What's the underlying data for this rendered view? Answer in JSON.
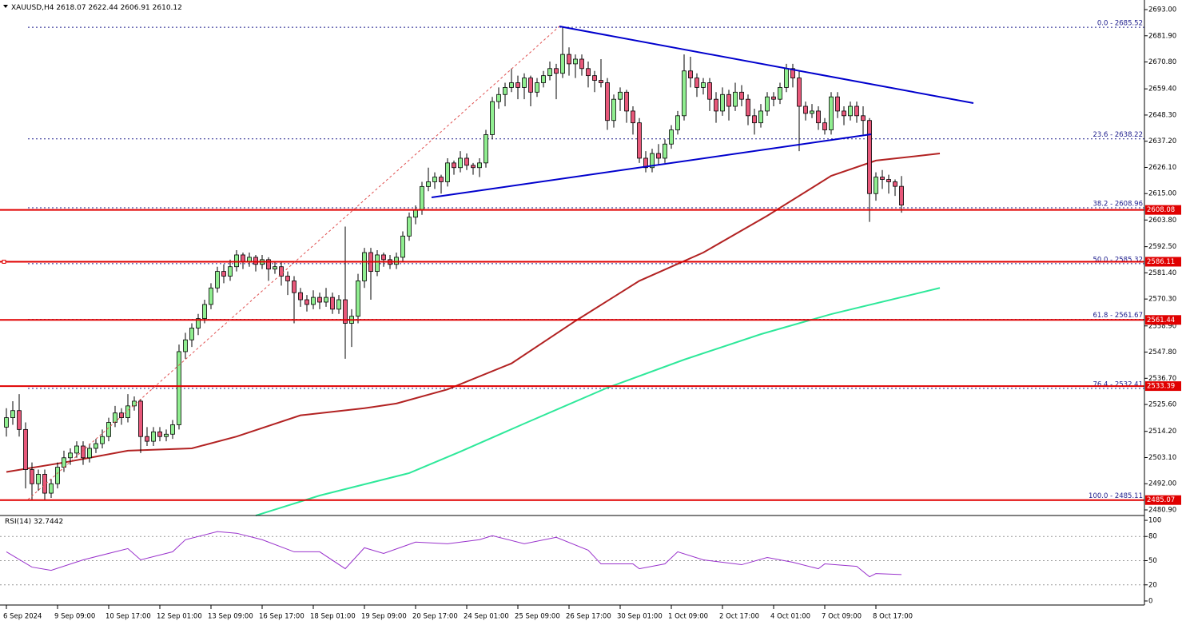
{
  "chart_data": {
    "type": "candlestick",
    "title": "XAUUSD,H4",
    "bull_color": "#90ee90",
    "bear_color": "#e8587a",
    "ylim": [
      2478.53,
      2697.07
    ],
    "yticks": [
      {
        "value": 2693.0,
        "label": "2693.00"
      },
      {
        "value": 2681.9,
        "label": "2681.90"
      },
      {
        "value": 2670.8,
        "label": "2670.80"
      },
      {
        "value": 2659.4,
        "label": "2659.40"
      },
      {
        "value": 2648.3,
        "label": "2648.30"
      },
      {
        "value": 2637.2,
        "label": "2637.20"
      },
      {
        "value": 2626.1,
        "label": "2626.10"
      },
      {
        "value": 2615.0,
        "label": "2615.00"
      },
      {
        "value": 2603.8,
        "label": "2603.80"
      },
      {
        "value": 2592.5,
        "label": "2592.50"
      },
      {
        "value": 2581.4,
        "label": "2581.40"
      },
      {
        "value": 2570.3,
        "label": "2570.30"
      },
      {
        "value": 2558.9,
        "label": "2558.90"
      },
      {
        "value": 2547.8,
        "label": "2547.80"
      },
      {
        "value": 2536.7,
        "label": "2536.70"
      },
      {
        "value": 2525.6,
        "label": "2525.60"
      },
      {
        "value": 2514.2,
        "label": "2514.20"
      },
      {
        "value": 2503.1,
        "label": "2503.10"
      },
      {
        "value": 2492.0,
        "label": "2492.00"
      },
      {
        "value": 2480.9,
        "label": "2480.90"
      }
    ],
    "categories": [
      "6 Sep 2024",
      null,
      null,
      null,
      null,
      null,
      null,
      null,
      "9 Sep 09:00",
      null,
      null,
      null,
      null,
      null,
      null,
      null,
      "10 Sep 17:00",
      null,
      null,
      null,
      null,
      null,
      null,
      null,
      "12 Sep 01:00",
      null,
      null,
      null,
      null,
      null,
      null,
      null,
      "13 Sep 09:00",
      null,
      null,
      null,
      null,
      null,
      null,
      null,
      "16 Sep 17:00",
      null,
      null,
      null,
      null,
      null,
      null,
      null,
      "18 Sep 01:00",
      null,
      null,
      null,
      null,
      null,
      null,
      null,
      "19 Sep 09:00",
      null,
      null,
      null,
      null,
      null,
      null,
      null,
      "20 Sep 17:00",
      null,
      null,
      null,
      null,
      null,
      null,
      null,
      "24 Sep 01:00",
      null,
      null,
      null,
      null,
      null,
      null,
      null,
      "25 Sep 09:00",
      null,
      null,
      null,
      null,
      null,
      null,
      null,
      "26 Sep 17:00",
      null,
      null,
      null,
      null,
      null,
      null,
      null,
      "30 Sep 01:00",
      null,
      null,
      null,
      null,
      null,
      null,
      null,
      "1 Oct 09:00",
      null,
      null,
      null,
      null,
      null,
      null,
      null,
      "2 Oct 17:00",
      null,
      null,
      null,
      null,
      null,
      null,
      null,
      "4 Oct 01:00",
      null,
      null,
      null,
      null,
      null,
      null,
      null,
      "7 Oct 09:00",
      null,
      null,
      null,
      null,
      null,
      null,
      null,
      "8 Oct 17:00",
      null,
      null,
      null,
      null
    ],
    "ohlc": [
      [
        2516,
        2524,
        2512,
        2520
      ],
      [
        2520,
        2527,
        2517,
        2523
      ],
      [
        2523,
        2530,
        2512,
        2515
      ],
      [
        2515,
        2518,
        2490,
        2498
      ],
      [
        2498,
        2501,
        2485,
        2492
      ],
      [
        2492,
        2498,
        2489,
        2496
      ],
      [
        2496,
        2498,
        2485,
        2488
      ],
      [
        2488,
        2494,
        2486,
        2492
      ],
      [
        2492,
        2501,
        2490,
        2499
      ],
      [
        2499,
        2506,
        2497,
        2503
      ],
      [
        2503,
        2507,
        2500,
        2505
      ],
      [
        2505,
        2510,
        2503,
        2508
      ],
      [
        2508,
        2510,
        2500,
        2503
      ],
      [
        2503,
        2509,
        2501,
        2507
      ],
      [
        2507,
        2511,
        2505,
        2509
      ],
      [
        2509,
        2515,
        2507,
        2512
      ],
      [
        2512,
        2520,
        2510,
        2518
      ],
      [
        2518,
        2525,
        2516,
        2522
      ],
      [
        2522,
        2524,
        2517,
        2520
      ],
      [
        2520,
        2530,
        2518,
        2525
      ],
      [
        2525,
        2529,
        2523,
        2527
      ],
      [
        2527,
        2528,
        2505,
        2512
      ],
      [
        2512,
        2516,
        2508,
        2510
      ],
      [
        2510,
        2516,
        2508,
        2514
      ],
      [
        2514,
        2516,
        2510,
        2512
      ],
      [
        2512,
        2515,
        2510,
        2513
      ],
      [
        2513,
        2519,
        2511,
        2517
      ],
      [
        2517,
        2551,
        2515,
        2548
      ],
      [
        2548,
        2556,
        2545,
        2553
      ],
      [
        2553,
        2560,
        2550,
        2558
      ],
      [
        2558,
        2564,
        2555,
        2562
      ],
      [
        2562,
        2570,
        2560,
        2568
      ],
      [
        2568,
        2577,
        2566,
        2575
      ],
      [
        2575,
        2584,
        2573,
        2582
      ],
      [
        2582,
        2585,
        2577,
        2580
      ],
      [
        2580,
        2587,
        2578,
        2584
      ],
      [
        2584,
        2591,
        2582,
        2589
      ],
      [
        2589,
        2590,
        2583,
        2586
      ],
      [
        2586,
        2590,
        2584,
        2588
      ],
      [
        2588,
        2589,
        2582,
        2585
      ],
      [
        2585,
        2589,
        2583,
        2587
      ],
      [
        2587,
        2588,
        2578,
        2583
      ],
      [
        2583,
        2586,
        2581,
        2584
      ],
      [
        2584,
        2586,
        2576,
        2580
      ],
      [
        2580,
        2582,
        2572,
        2578
      ],
      [
        2578,
        2580,
        2560,
        2573
      ],
      [
        2573,
        2575,
        2567,
        2570
      ],
      [
        2570,
        2572,
        2565,
        2568
      ],
      [
        2568,
        2574,
        2566,
        2571
      ],
      [
        2571,
        2573,
        2566,
        2569
      ],
      [
        2569,
        2575,
        2567,
        2571
      ],
      [
        2571,
        2573,
        2564,
        2566
      ],
      [
        2566,
        2572,
        2564,
        2570
      ],
      [
        2570,
        2601,
        2545,
        2560
      ],
      [
        2560,
        2566,
        2550,
        2563
      ],
      [
        2563,
        2581,
        2560,
        2578
      ],
      [
        2578,
        2592,
        2575,
        2590
      ],
      [
        2590,
        2592,
        2570,
        2582
      ],
      [
        2582,
        2591,
        2580,
        2589
      ],
      [
        2589,
        2590,
        2584,
        2587
      ],
      [
        2587,
        2589,
        2583,
        2585
      ],
      [
        2585,
        2590,
        2583,
        2588
      ],
      [
        2588,
        2599,
        2586,
        2597
      ],
      [
        2597,
        2607,
        2595,
        2605
      ],
      [
        2605,
        2610,
        2602,
        2608
      ],
      [
        2608,
        2620,
        2606,
        2618
      ],
      [
        2618,
        2626,
        2616,
        2620
      ],
      [
        2620,
        2624,
        2617,
        2622
      ],
      [
        2622,
        2623,
        2615,
        2620
      ],
      [
        2620,
        2630,
        2618,
        2628
      ],
      [
        2628,
        2629,
        2623,
        2626
      ],
      [
        2626,
        2633,
        2624,
        2630
      ],
      [
        2630,
        2632,
        2625,
        2627
      ],
      [
        2627,
        2628,
        2623,
        2626
      ],
      [
        2626,
        2630,
        2622,
        2628
      ],
      [
        2628,
        2642,
        2626,
        2640
      ],
      [
        2640,
        2656,
        2638,
        2654
      ],
      [
        2654,
        2660,
        2651,
        2657
      ],
      [
        2657,
        2662,
        2652,
        2660
      ],
      [
        2660,
        2668,
        2658,
        2662
      ],
      [
        2662,
        2665,
        2655,
        2660
      ],
      [
        2660,
        2666,
        2655,
        2664
      ],
      [
        2664,
        2665,
        2652,
        2658
      ],
      [
        2658,
        2664,
        2656,
        2662
      ],
      [
        2662,
        2667,
        2660,
        2665
      ],
      [
        2665,
        2671,
        2663,
        2668
      ],
      [
        2668,
        2670,
        2655,
        2666
      ],
      [
        2666,
        2685.5,
        2664,
        2674
      ],
      [
        2674,
        2677,
        2665,
        2670
      ],
      [
        2670,
        2674,
        2664,
        2672
      ],
      [
        2672,
        2674,
        2665,
        2668
      ],
      [
        2668,
        2671,
        2660,
        2665
      ],
      [
        2665,
        2667,
        2658,
        2663
      ],
      [
        2663,
        2672,
        2660,
        2662
      ],
      [
        2662,
        2664,
        2642,
        2646
      ],
      [
        2646,
        2657,
        2643,
        2655
      ],
      [
        2655,
        2660,
        2650,
        2658
      ],
      [
        2658,
        2659,
        2645,
        2650
      ],
      [
        2650,
        2652,
        2640,
        2645
      ],
      [
        2645,
        2647,
        2628,
        2630
      ],
      [
        2630,
        2633,
        2624,
        2626
      ],
      [
        2626,
        2634,
        2624,
        2632
      ],
      [
        2632,
        2636,
        2627,
        2630
      ],
      [
        2630,
        2638,
        2628,
        2636
      ],
      [
        2636,
        2644,
        2634,
        2642
      ],
      [
        2642,
        2650,
        2640,
        2648
      ],
      [
        2648,
        2674,
        2646,
        2667
      ],
      [
        2667,
        2673,
        2660,
        2664
      ],
      [
        2664,
        2666,
        2656,
        2660
      ],
      [
        2660,
        2664,
        2657,
        2662
      ],
      [
        2662,
        2664,
        2650,
        2655
      ],
      [
        2655,
        2658,
        2645,
        2650
      ],
      [
        2650,
        2660,
        2648,
        2657
      ],
      [
        2657,
        2659,
        2646,
        2652
      ],
      [
        2652,
        2662,
        2650,
        2658
      ],
      [
        2658,
        2661,
        2652,
        2655
      ],
      [
        2655,
        2657,
        2644,
        2648
      ],
      [
        2648,
        2651,
        2640,
        2645
      ],
      [
        2645,
        2653,
        2643,
        2650
      ],
      [
        2650,
        2658,
        2648,
        2656
      ],
      [
        2656,
        2658,
        2652,
        2655
      ],
      [
        2655,
        2662,
        2653,
        2660
      ],
      [
        2660,
        2670,
        2658,
        2668
      ],
      [
        2668,
        2670,
        2660,
        2664
      ],
      [
        2664,
        2667,
        2633,
        2652
      ],
      [
        2652,
        2654,
        2646,
        2649
      ],
      [
        2649,
        2653,
        2647,
        2650
      ],
      [
        2650,
        2652,
        2642,
        2645
      ],
      [
        2645,
        2647,
        2640,
        2642
      ],
      [
        2642,
        2658,
        2640,
        2656
      ],
      [
        2656,
        2658,
        2647,
        2650
      ],
      [
        2650,
        2652,
        2644,
        2648
      ],
      [
        2648,
        2654,
        2646,
        2652
      ],
      [
        2652,
        2654,
        2645,
        2648
      ],
      [
        2648,
        2652,
        2640,
        2646
      ],
      [
        2646,
        2647,
        2603,
        2615
      ],
      [
        2615,
        2624,
        2612,
        2622
      ],
      [
        2622,
        2625,
        2617,
        2621
      ],
      [
        2621,
        2623,
        2615,
        2620
      ],
      [
        2620,
        2621,
        2614,
        2618.07
      ],
      [
        2618.07,
        2622.44,
        2606.91,
        2610.12
      ]
    ],
    "ma": [
      {
        "color": "#b22222",
        "x": [
          0,
          9,
          19,
          29,
          36,
          46,
          56,
          61,
          69,
          79,
          89,
          99,
          109,
          119,
          129,
          136,
          146
        ],
        "values": [
          2497,
          2501,
          2506,
          2507,
          2512,
          2521,
          2524,
          2526,
          2532,
          2543,
          2561,
          2578,
          2590,
          2605.6,
          2622.5,
          2629,
          2632
        ]
      },
      {
        "color": "#2ee89a",
        "x": [
          39,
          49,
          63,
          71,
          81,
          94,
          106,
          118,
          129,
          146
        ],
        "values": [
          2478.5,
          2487,
          2496.5,
          2505.6,
          2517.5,
          2532.7,
          2544.6,
          2555.4,
          2563.9,
          2575
        ]
      }
    ],
    "fib_levels": [
      {
        "value": 2685.52,
        "label": "0.0 - 2685.52"
      },
      {
        "value": 2638.22,
        "label": "23.6 - 2638.22"
      },
      {
        "value": 2608.96,
        "label": "38.2 - 2608.96"
      },
      {
        "value": 2585.32,
        "label": "50.0 - 2585.32"
      },
      {
        "value": 2561.67,
        "label": "61.8 - 2561.67"
      },
      {
        "value": 2532.41,
        "label": "76.4 - 2532.41"
      },
      {
        "value": 2485.11,
        "label": "100.0 - 2485.11"
      }
    ],
    "hlines": [
      2608.08,
      2586.11,
      2561.44,
      2533.39,
      2485.07
    ],
    "hline_color": "#e00000",
    "rsi": {
      "name": "RSI(14)",
      "color": "#9932cc",
      "ylim": [
        -5,
        106
      ],
      "yticks": [
        100,
        80,
        50,
        20,
        0
      ],
      "x": [
        0,
        4,
        7,
        12,
        19,
        21,
        26,
        28,
        33,
        36,
        40,
        45,
        49,
        53,
        56,
        59,
        64,
        69,
        74,
        76,
        81,
        86,
        91,
        93,
        98,
        99,
        103,
        105,
        109,
        115,
        119,
        123,
        127,
        128,
        133,
        135,
        136,
        140
      ],
      "values": [
        61,
        42,
        38,
        51,
        65,
        51,
        61,
        76,
        86,
        84,
        76,
        61,
        61,
        40,
        66,
        59,
        73,
        71,
        76,
        81,
        71,
        79,
        63,
        46,
        46,
        40,
        46,
        61,
        51,
        45,
        54,
        48,
        40,
        46,
        43,
        30,
        34,
        32.7442
      ]
    }
  }
}
